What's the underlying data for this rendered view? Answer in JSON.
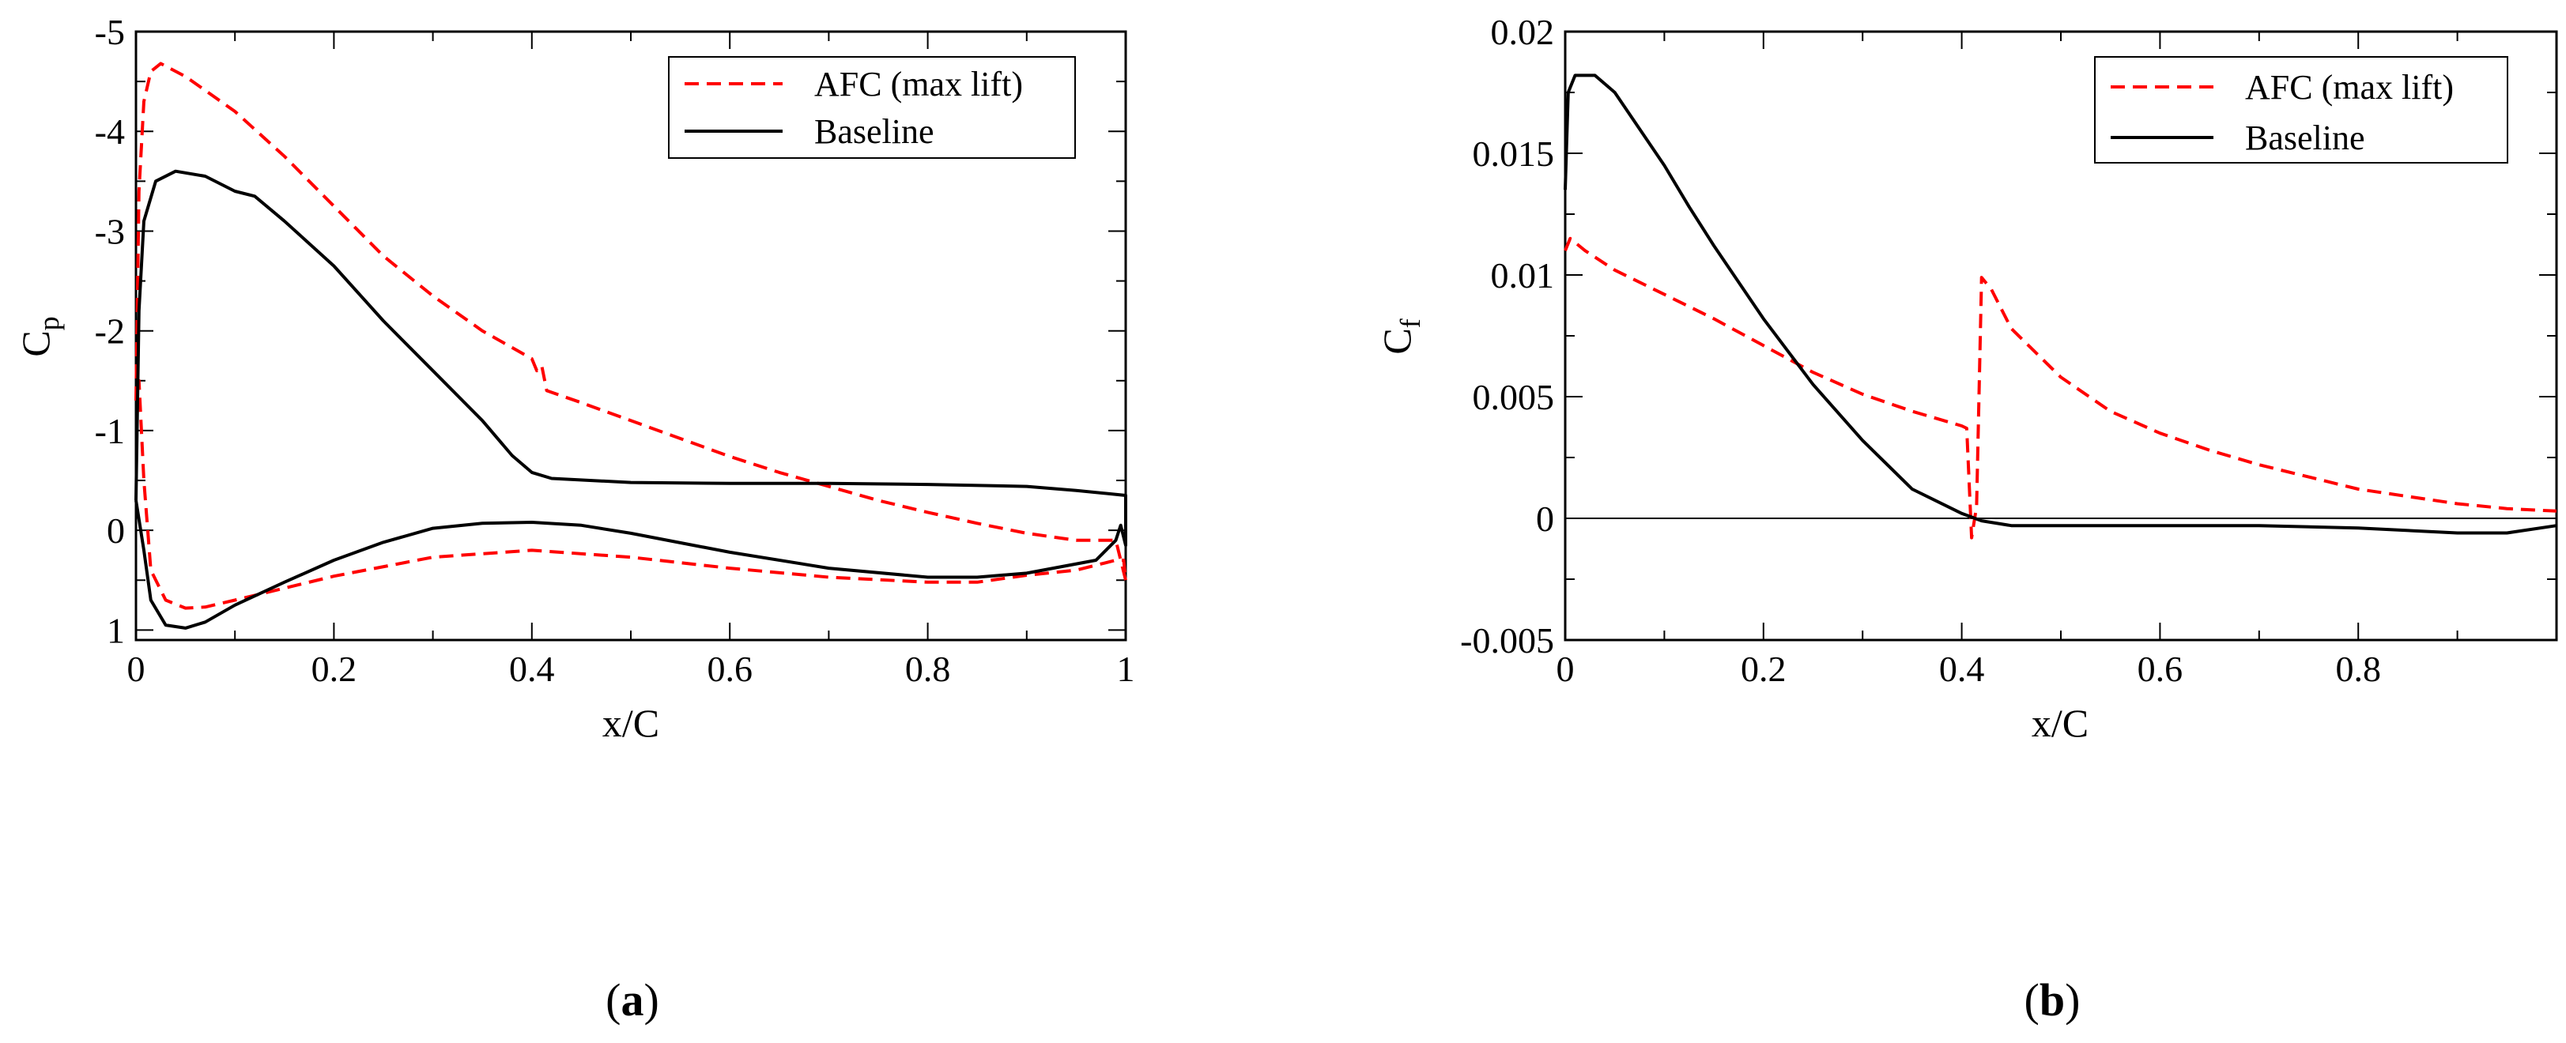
{
  "chart_data": [
    {
      "panel_label": "(a)",
      "type": "line",
      "xlabel": "x/C",
      "ylabel": "C",
      "ylabel_subscript": "p",
      "xlim": [
        0,
        1
      ],
      "ylim": [
        1.1,
        -5.0
      ],
      "y_inverted": true,
      "x_ticks": [
        0,
        0.2,
        0.4,
        0.6,
        0.8,
        1
      ],
      "x_tick_labels": [
        "0",
        "0.2",
        "0.4",
        "0.6",
        "0.8",
        "1"
      ],
      "y_ticks": [
        -5,
        -4,
        -3,
        -2,
        -1,
        0,
        1
      ],
      "y_tick_labels": [
        "-5",
        "-4",
        "-3",
        "-2",
        "-1",
        "0",
        "1"
      ],
      "legend_position": "top-right",
      "series": [
        {
          "name": "AFC (max lift)",
          "color": "#ff0000",
          "style": "dashed",
          "points": [
            [
              0.0,
              -1.3
            ],
            [
              0.003,
              -3.4
            ],
            [
              0.008,
              -4.3
            ],
            [
              0.015,
              -4.6
            ],
            [
              0.025,
              -4.68
            ],
            [
              0.05,
              -4.55
            ],
            [
              0.1,
              -4.2
            ],
            [
              0.15,
              -3.75
            ],
            [
              0.2,
              -3.25
            ],
            [
              0.25,
              -2.75
            ],
            [
              0.3,
              -2.35
            ],
            [
              0.35,
              -2.0
            ],
            [
              0.4,
              -1.72
            ],
            [
              0.405,
              -1.6
            ],
            [
              0.41,
              -1.65
            ],
            [
              0.415,
              -1.4
            ],
            [
              0.45,
              -1.28
            ],
            [
              0.5,
              -1.1
            ],
            [
              0.55,
              -0.92
            ],
            [
              0.6,
              -0.74
            ],
            [
              0.65,
              -0.58
            ],
            [
              0.7,
              -0.44
            ],
            [
              0.75,
              -0.3
            ],
            [
              0.8,
              -0.18
            ],
            [
              0.85,
              -0.07
            ],
            [
              0.9,
              0.03
            ],
            [
              0.95,
              0.1
            ],
            [
              0.99,
              0.1
            ],
            [
              1.0,
              0.5
            ],
            [
              0.998,
              0.3
            ],
            [
              0.99,
              0.3
            ],
            [
              0.95,
              0.4
            ],
            [
              0.9,
              0.45
            ],
            [
              0.85,
              0.52
            ],
            [
              0.8,
              0.52
            ],
            [
              0.7,
              0.47
            ],
            [
              0.6,
              0.38
            ],
            [
              0.5,
              0.27
            ],
            [
              0.4,
              0.2
            ],
            [
              0.3,
              0.27
            ],
            [
              0.2,
              0.46
            ],
            [
              0.15,
              0.58
            ],
            [
              0.1,
              0.7
            ],
            [
              0.07,
              0.77
            ],
            [
              0.05,
              0.78
            ],
            [
              0.03,
              0.7
            ],
            [
              0.015,
              0.4
            ],
            [
              0.008,
              -0.5
            ],
            [
              0.003,
              -1.5
            ],
            [
              0.0,
              -1.3
            ]
          ]
        },
        {
          "name": "Baseline",
          "color": "#000000",
          "style": "solid",
          "points": [
            [
              0.0,
              -0.3
            ],
            [
              0.003,
              -2.2
            ],
            [
              0.008,
              -3.1
            ],
            [
              0.02,
              -3.5
            ],
            [
              0.04,
              -3.6
            ],
            [
              0.07,
              -3.55
            ],
            [
              0.1,
              -3.4
            ],
            [
              0.12,
              -3.35
            ],
            [
              0.15,
              -3.1
            ],
            [
              0.2,
              -2.65
            ],
            [
              0.25,
              -2.1
            ],
            [
              0.3,
              -1.6
            ],
            [
              0.35,
              -1.1
            ],
            [
              0.38,
              -0.75
            ],
            [
              0.4,
              -0.58
            ],
            [
              0.42,
              -0.52
            ],
            [
              0.5,
              -0.48
            ],
            [
              0.6,
              -0.47
            ],
            [
              0.7,
              -0.47
            ],
            [
              0.8,
              -0.46
            ],
            [
              0.9,
              -0.44
            ],
            [
              0.95,
              -0.4
            ],
            [
              1.0,
              -0.35
            ],
            [
              1.0,
              0.15
            ],
            [
              0.995,
              -0.05
            ],
            [
              0.99,
              0.1
            ],
            [
              0.97,
              0.3
            ],
            [
              0.9,
              0.43
            ],
            [
              0.85,
              0.47
            ],
            [
              0.8,
              0.47
            ],
            [
              0.7,
              0.38
            ],
            [
              0.6,
              0.22
            ],
            [
              0.5,
              0.03
            ],
            [
              0.45,
              -0.05
            ],
            [
              0.4,
              -0.08
            ],
            [
              0.35,
              -0.07
            ],
            [
              0.3,
              -0.02
            ],
            [
              0.25,
              0.12
            ],
            [
              0.2,
              0.3
            ],
            [
              0.15,
              0.52
            ],
            [
              0.1,
              0.75
            ],
            [
              0.07,
              0.92
            ],
            [
              0.05,
              0.98
            ],
            [
              0.03,
              0.95
            ],
            [
              0.015,
              0.7
            ],
            [
              0.008,
              0.2
            ],
            [
              0.0,
              -0.3
            ]
          ]
        }
      ]
    },
    {
      "panel_label": "(b)",
      "type": "line",
      "xlabel": "x/C",
      "ylabel": "C",
      "ylabel_subscript": "f",
      "xlim": [
        0,
        1
      ],
      "ylim": [
        -0.005,
        0.02
      ],
      "y_inverted": false,
      "x_ticks": [
        0,
        0.2,
        0.4,
        0.6,
        0.8
      ],
      "x_tick_labels": [
        "0",
        "0.2",
        "0.4",
        "0.6",
        "0.8"
      ],
      "y_ticks": [
        -0.005,
        0,
        0.005,
        0.01,
        0.015,
        0.02
      ],
      "y_tick_labels": [
        "-0.005",
        "0",
        "0.005",
        "0.01",
        "0.015",
        "0.02"
      ],
      "zero_line": true,
      "legend_position": "top-right",
      "series": [
        {
          "name": "AFC (max lift)",
          "color": "#ff0000",
          "style": "dashed",
          "points": [
            [
              0.0,
              0.011
            ],
            [
              0.005,
              0.0115
            ],
            [
              0.02,
              0.011
            ],
            [
              0.05,
              0.0102
            ],
            [
              0.1,
              0.0092
            ],
            [
              0.15,
              0.0082
            ],
            [
              0.2,
              0.0071
            ],
            [
              0.25,
              0.006
            ],
            [
              0.3,
              0.0051
            ],
            [
              0.35,
              0.0044
            ],
            [
              0.4,
              0.0038
            ],
            [
              0.405,
              0.0037
            ],
            [
              0.41,
              -0.0008
            ],
            [
              0.415,
              0.0005
            ],
            [
              0.42,
              0.0099
            ],
            [
              0.43,
              0.0094
            ],
            [
              0.45,
              0.0078
            ],
            [
              0.5,
              0.0058
            ],
            [
              0.55,
              0.0044
            ],
            [
              0.6,
              0.0035
            ],
            [
              0.65,
              0.0028
            ],
            [
              0.7,
              0.0022
            ],
            [
              0.75,
              0.0017
            ],
            [
              0.8,
              0.0012
            ],
            [
              0.85,
              0.0009
            ],
            [
              0.9,
              0.0006
            ],
            [
              0.95,
              0.0004
            ],
            [
              1.0,
              0.0003
            ]
          ]
        },
        {
          "name": "Baseline",
          "color": "#000000",
          "style": "solid",
          "points": [
            [
              0.0,
              0.0135
            ],
            [
              0.003,
              0.0175
            ],
            [
              0.01,
              0.0182
            ],
            [
              0.03,
              0.0182
            ],
            [
              0.05,
              0.0175
            ],
            [
              0.1,
              0.0145
            ],
            [
              0.125,
              0.0128
            ],
            [
              0.15,
              0.0112
            ],
            [
              0.2,
              0.0082
            ],
            [
              0.25,
              0.0055
            ],
            [
              0.3,
              0.0032
            ],
            [
              0.35,
              0.0012
            ],
            [
              0.4,
              0.0002
            ],
            [
              0.42,
              -0.0001
            ],
            [
              0.45,
              -0.0003
            ],
            [
              0.5,
              -0.0003
            ],
            [
              0.6,
              -0.0003
            ],
            [
              0.7,
              -0.0003
            ],
            [
              0.8,
              -0.0004
            ],
            [
              0.9,
              -0.0006
            ],
            [
              0.95,
              -0.0006
            ],
            [
              1.0,
              -0.0003
            ]
          ]
        }
      ]
    }
  ]
}
